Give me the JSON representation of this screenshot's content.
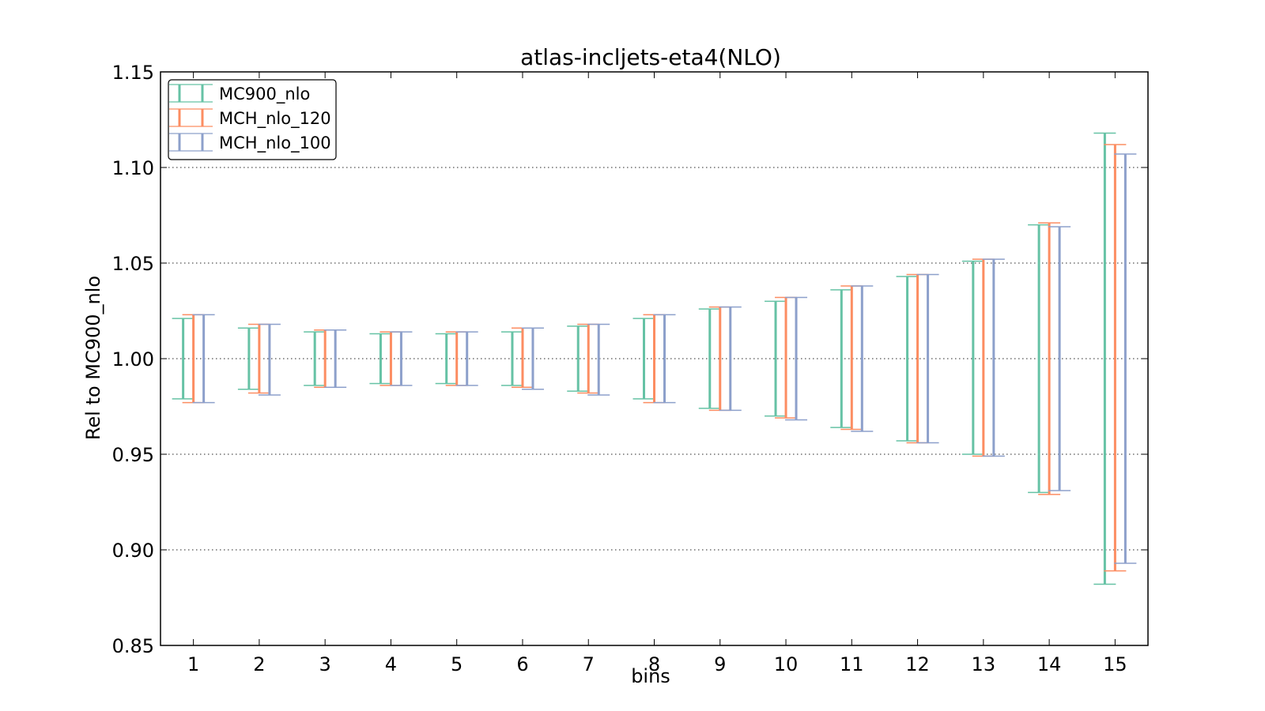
{
  "chart_data": {
    "type": "errorbar",
    "title": "atlas-incljets-eta4(NLO)",
    "xlabel": "bins",
    "ylabel": "Rel to MC900_nlo",
    "xlim": [
      0.5,
      15.5
    ],
    "ylim": [
      0.85,
      1.15
    ],
    "x_ticks": [
      "1",
      "2",
      "3",
      "4",
      "5",
      "6",
      "7",
      "8",
      "9",
      "10",
      "11",
      "12",
      "13",
      "14",
      "15"
    ],
    "y_ticks": [
      "0.85",
      "0.90",
      "0.95",
      "1.00",
      "1.05",
      "1.10",
      "1.15"
    ],
    "grid": "horizontal-dotted",
    "legend_position": "top-left",
    "categories": [
      1,
      2,
      3,
      4,
      5,
      6,
      7,
      8,
      9,
      10,
      11,
      12,
      13,
      14,
      15
    ],
    "series": [
      {
        "name": "MC900_nlo",
        "color": "#66c2a5",
        "lower": [
          0.979,
          0.984,
          0.986,
          0.987,
          0.987,
          0.986,
          0.983,
          0.979,
          0.974,
          0.97,
          0.964,
          0.957,
          0.95,
          0.93,
          0.882
        ],
        "upper": [
          1.021,
          1.016,
          1.014,
          1.013,
          1.013,
          1.014,
          1.017,
          1.021,
          1.026,
          1.03,
          1.036,
          1.043,
          1.051,
          1.07,
          1.118
        ]
      },
      {
        "name": "MCH_nlo_120",
        "color": "#fc8d62",
        "lower": [
          0.977,
          0.982,
          0.985,
          0.986,
          0.986,
          0.985,
          0.982,
          0.977,
          0.973,
          0.969,
          0.963,
          0.956,
          0.949,
          0.929,
          0.889
        ],
        "upper": [
          1.023,
          1.018,
          1.015,
          1.014,
          1.014,
          1.016,
          1.018,
          1.023,
          1.027,
          1.032,
          1.038,
          1.044,
          1.052,
          1.071,
          1.112
        ]
      },
      {
        "name": "MCH_nlo_100",
        "color": "#8da0cb",
        "lower": [
          0.977,
          0.981,
          0.985,
          0.986,
          0.986,
          0.984,
          0.981,
          0.977,
          0.973,
          0.968,
          0.962,
          0.956,
          0.949,
          0.931,
          0.893
        ],
        "upper": [
          1.023,
          1.018,
          1.015,
          1.014,
          1.014,
          1.016,
          1.018,
          1.023,
          1.027,
          1.032,
          1.038,
          1.044,
          1.052,
          1.069,
          1.107
        ]
      }
    ]
  }
}
